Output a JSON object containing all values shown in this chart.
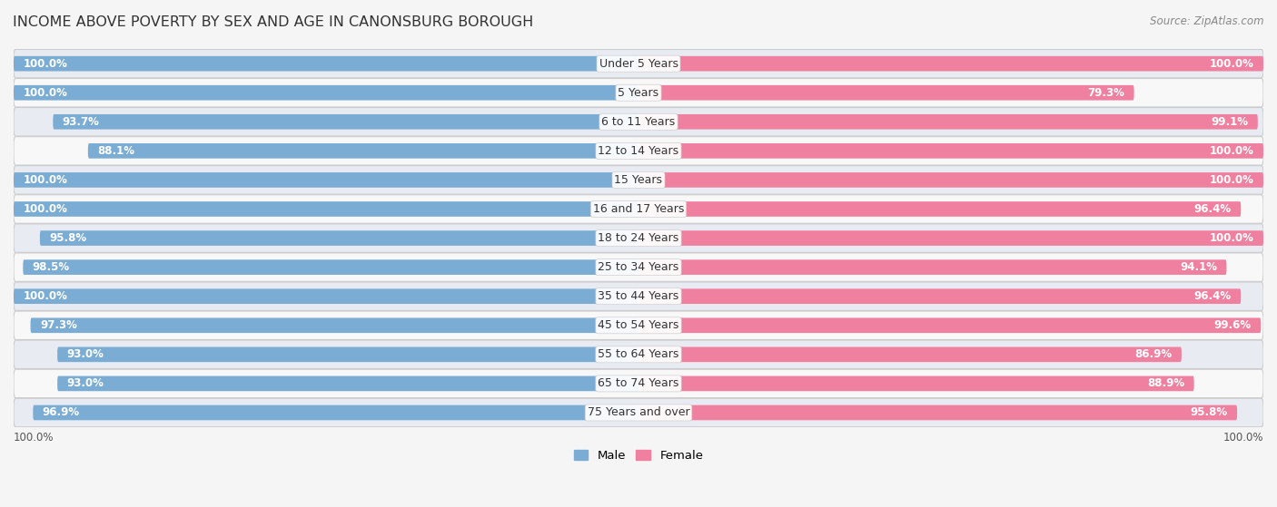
{
  "title": "INCOME ABOVE POVERTY BY SEX AND AGE IN CANONSBURG BOROUGH",
  "source": "Source: ZipAtlas.com",
  "categories": [
    "Under 5 Years",
    "5 Years",
    "6 to 11 Years",
    "12 to 14 Years",
    "15 Years",
    "16 and 17 Years",
    "18 to 24 Years",
    "25 to 34 Years",
    "35 to 44 Years",
    "45 to 54 Years",
    "55 to 64 Years",
    "65 to 74 Years",
    "75 Years and over"
  ],
  "male_values": [
    100.0,
    100.0,
    93.7,
    88.1,
    100.0,
    100.0,
    95.8,
    98.5,
    100.0,
    97.3,
    93.0,
    93.0,
    96.9
  ],
  "female_values": [
    100.0,
    79.3,
    99.1,
    100.0,
    100.0,
    96.4,
    100.0,
    94.1,
    96.4,
    99.6,
    86.9,
    88.9,
    95.8
  ],
  "male_color": "#7badd4",
  "female_color": "#f080a0",
  "male_label": "Male",
  "female_label": "Female",
  "background_color": "#f5f5f5",
  "row_even_color": "#e8ecf2",
  "row_odd_color": "#f8f8f8",
  "bar_height": 0.52,
  "xlabel_bottom_left": "100.0%",
  "xlabel_bottom_right": "100.0%",
  "title_fontsize": 11.5,
  "label_fontsize": 9,
  "value_fontsize": 8.5,
  "source_fontsize": 8.5
}
